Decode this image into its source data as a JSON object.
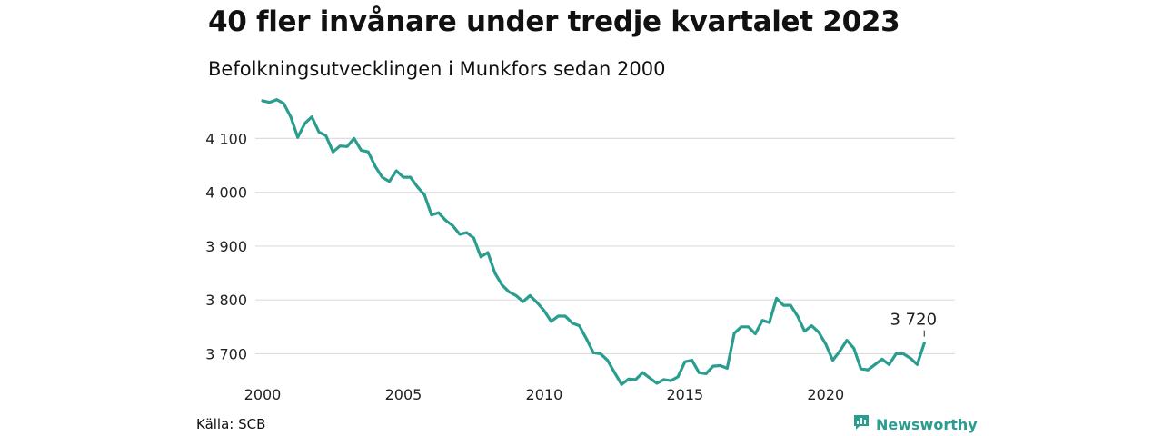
{
  "title": "40 fler invånare under tredje kvartalet 2023",
  "subtitle": "Befolkningsutvecklingen i Munkfors sedan 2000",
  "source": "Källa: SCB",
  "brand": {
    "name": "Newsworthy",
    "color": "#2a9d8f",
    "icon": "bar-chart-bubble-icon"
  },
  "chart_data": {
    "type": "line",
    "title": "40 fler invånare under tredje kvartalet 2023",
    "subtitle": "Befolkningsutvecklingen i Munkfors sedan 2000",
    "xlabel": "",
    "ylabel": "",
    "x_ticks": [
      "2000",
      "2005",
      "2010",
      "2015",
      "2020"
    ],
    "y_ticks": [
      "3 700",
      "3 800",
      "3 900",
      "4 000",
      "4 100"
    ],
    "ylim": [
      3640,
      4180
    ],
    "xlim": [
      2000.0,
      2023.75
    ],
    "grid": "horizontal",
    "line_color": "#2a9d8f",
    "end_label": "3 720",
    "series": [
      {
        "x": [
          2000.0,
          2000.25,
          2000.5,
          2000.75,
          2001.0,
          2001.25,
          2001.5,
          2001.75,
          2002.0,
          2002.25,
          2002.5,
          2002.75,
          2003.0,
          2003.25,
          2003.5,
          2003.75,
          2004.0,
          2004.25,
          2004.5,
          2004.75,
          2005.0,
          2005.25,
          2005.5,
          2005.75,
          2006.0,
          2006.25,
          2006.5,
          2006.75,
          2007.0,
          2007.25,
          2007.5,
          2007.75,
          2008.0,
          2008.25,
          2008.5,
          2008.75,
          2009.0,
          2009.25,
          2009.5,
          2009.75,
          2010.0,
          2010.25,
          2010.5,
          2010.75,
          2011.0,
          2011.25,
          2011.5,
          2011.75,
          2012.0,
          2012.25,
          2012.5,
          2012.75,
          2013.0,
          2013.25,
          2013.5,
          2013.75,
          2014.0,
          2014.25,
          2014.5,
          2014.75,
          2015.0,
          2015.25,
          2015.5,
          2015.75,
          2016.0,
          2016.25,
          2016.5,
          2016.75,
          2017.0,
          2017.25,
          2017.5,
          2017.75,
          2018.0,
          2018.25,
          2018.5,
          2018.75,
          2019.0,
          2019.25,
          2019.5,
          2019.75,
          2020.0,
          2020.25,
          2020.5,
          2020.75,
          2021.0,
          2021.25,
          2021.5,
          2021.75,
          2022.0,
          2022.25,
          2022.5,
          2022.75,
          2023.0,
          2023.25,
          2023.5
        ],
        "values": [
          4170,
          4167,
          4172,
          4165,
          4140,
          4102,
          4128,
          4140,
          4112,
          4105,
          4075,
          4086,
          4085,
          4100,
          4078,
          4075,
          4048,
          4028,
          4020,
          4040,
          4028,
          4028,
          4010,
          3995,
          3958,
          3962,
          3948,
          3938,
          3922,
          3925,
          3915,
          3880,
          3888,
          3850,
          3828,
          3815,
          3808,
          3797,
          3808,
          3795,
          3780,
          3760,
          3770,
          3770,
          3757,
          3752,
          3728,
          3702,
          3700,
          3688,
          3665,
          3643,
          3653,
          3652,
          3665,
          3655,
          3645,
          3652,
          3650,
          3657,
          3685,
          3688,
          3665,
          3663,
          3677,
          3678,
          3673,
          3738,
          3750,
          3750,
          3737,
          3762,
          3758,
          3803,
          3790,
          3790,
          3770,
          3742,
          3752,
          3740,
          3718,
          3688,
          3705,
          3725,
          3710,
          3672,
          3670,
          3680,
          3690,
          3680,
          3700,
          3700,
          3692,
          3680,
          3720
        ]
      }
    ]
  }
}
